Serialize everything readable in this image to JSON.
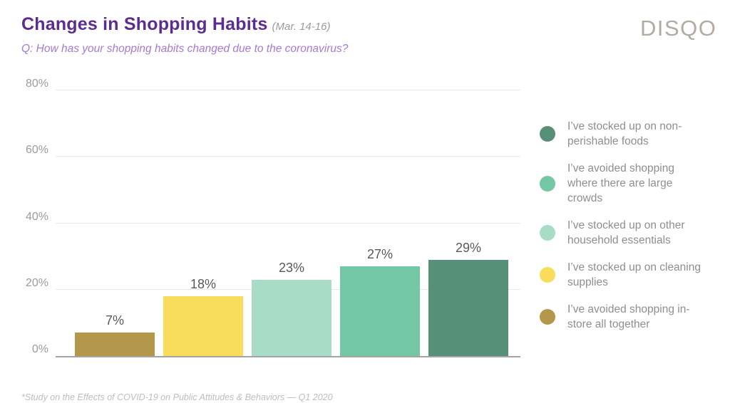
{
  "header": {
    "title": "Changes in Shopping Habits",
    "date_note": "(Mar. 14-16)",
    "question": "Q: How has your shopping habits changed due to the coronavirus?",
    "logo": "DISQO"
  },
  "chart_data": {
    "type": "bar",
    "title": "Changes in Shopping Habits (Mar. 14-16)",
    "subtitle": "Q: How has your shopping habits changed due to the coronavirus?",
    "categories": [
      "I’ve avoided shopping in-store all together",
      "I’ve stocked up on cleaning supplies",
      "I’ve stocked up on other household essentials",
      "I’ve avoided shopping where there are large crowds",
      "I’ve stocked up on non-perishable foods"
    ],
    "values": [
      7,
      18,
      23,
      27,
      29
    ],
    "value_labels": [
      "7%",
      "18%",
      "23%",
      "27%",
      "29%"
    ],
    "bar_colors": [
      "#B3974A",
      "#F8DC5B",
      "#A9DCC7",
      "#74C7A4",
      "#579078"
    ],
    "y_ticks": [
      {
        "value": 0,
        "label": "0%"
      },
      {
        "value": 20,
        "label": "20%"
      },
      {
        "value": 40,
        "label": "40%"
      },
      {
        "value": 60,
        "label": "60%"
      },
      {
        "value": 80,
        "label": "80%"
      }
    ],
    "ylim": [
      0,
      80
    ],
    "xlabel": "",
    "ylabel": "",
    "grid": true,
    "legend_position": "right"
  },
  "legend": {
    "items": [
      {
        "label": "I’ve stocked up on non-perishable foods",
        "color": "#579078"
      },
      {
        "label": "I’ve avoided shopping where there are large crowds",
        "color": "#74C7A4"
      },
      {
        "label": "I’ve stocked up on other household essentials",
        "color": "#A9DCC7"
      },
      {
        "label": "I’ve stocked up on cleaning supplies",
        "color": "#F8DC5B"
      },
      {
        "label": "I’ve avoided shopping in-store all together",
        "color": "#B3974A"
      }
    ]
  },
  "footnote": "*Study on the Effects of COVID-19 on Public Attitudes & Behaviors — Q1 2020"
}
